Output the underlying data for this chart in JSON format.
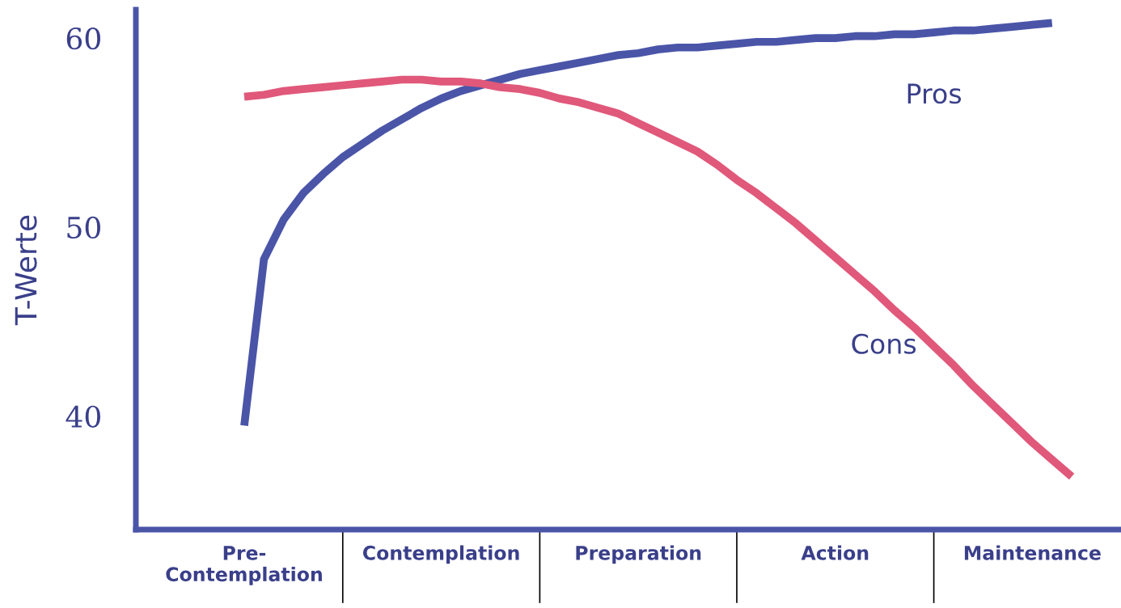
{
  "chart_data": {
    "type": "line",
    "ylabel": "T-Werte",
    "categories": [
      null,
      null,
      null,
      null,
      null,
      "Pre-\nContemplation",
      null,
      null,
      null,
      null,
      null,
      null,
      null,
      null,
      null,
      "Contemplation",
      null,
      null,
      null,
      null,
      null,
      null,
      null,
      null,
      null,
      "Preparation",
      null,
      null,
      null,
      null,
      null,
      null,
      null,
      null,
      null,
      "Action",
      null,
      null,
      null,
      null,
      null,
      null,
      null,
      null,
      null,
      "Maintenance",
      null,
      null,
      null,
      null
    ],
    "ylim": [
      34,
      61.5
    ],
    "yticks": [
      40,
      50,
      60
    ],
    "grid": false,
    "legend": false,
    "marker": "none",
    "line_style": "solid",
    "series": [
      {
        "name": "Pros",
        "color": "#4a55a8",
        "values": [
          null,
          null,
          null,
          null,
          null,
          39.5,
          48.3,
          50.4,
          51.8,
          52.8,
          53.7,
          54.4,
          55.1,
          55.7,
          56.3,
          56.8,
          57.2,
          57.5,
          57.8,
          58.1,
          58.3,
          58.5,
          58.7,
          58.9,
          59.1,
          59.2,
          59.4,
          59.5,
          59.5,
          59.6,
          59.7,
          59.8,
          59.8,
          59.9,
          60.0,
          60.0,
          60.1,
          60.1,
          60.2,
          60.2,
          60.3,
          60.4,
          60.4,
          60.5,
          60.6,
          60.7,
          60.8,
          null,
          null,
          null
        ]
      },
      {
        "name": "Cons",
        "color": "#e0587a",
        "values": [
          null,
          null,
          null,
          null,
          null,
          56.9,
          57.0,
          57.2,
          57.3,
          57.4,
          57.5,
          57.6,
          57.7,
          57.8,
          57.8,
          57.7,
          57.7,
          57.6,
          57.4,
          57.3,
          57.1,
          56.8,
          56.6,
          56.3,
          56.0,
          55.5,
          55.0,
          54.5,
          54.0,
          53.3,
          52.5,
          51.8,
          51.0,
          50.2,
          49.3,
          48.4,
          47.5,
          46.6,
          45.6,
          44.7,
          43.7,
          42.7,
          41.6,
          40.6,
          39.6,
          38.6,
          37.7,
          36.8,
          null,
          null
        ]
      }
    ]
  }
}
